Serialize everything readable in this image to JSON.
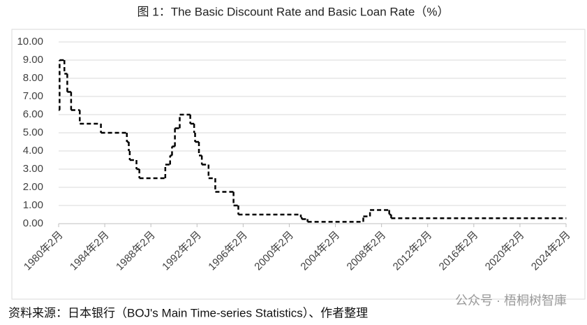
{
  "chart_data": {
    "type": "line",
    "step": true,
    "title": "图 1：The Basic Discount Rate and Basic Loan Rate（%）",
    "source": "资料来源：日本银行（BOJ's Main Time-series Statistics）、作者整理",
    "watermark": "公众号 · 梧桐树智庫",
    "color": "#000000",
    "dashed": true,
    "grid": true,
    "x": [
      "1980-02",
      "1980-03",
      "1980-08",
      "1980-11",
      "1981-03",
      "1981-12",
      "1983-10",
      "1986-01",
      "1986-03",
      "1986-04",
      "1986-11",
      "1987-02",
      "1989-05",
      "1989-10",
      "1989-12",
      "1990-03",
      "1990-08",
      "1991-07",
      "1991-11",
      "1991-12",
      "1992-04",
      "1992-07",
      "1993-02",
      "1993-09",
      "1995-04",
      "1995-09",
      "2001-02",
      "2001-03",
      "2001-09",
      "2006-07",
      "2007-02",
      "2008-10",
      "2008-12",
      "2024-02"
    ],
    "values": [
      6.25,
      9,
      8.25,
      7.25,
      6.25,
      5.5,
      5,
      4.5,
      4,
      3.5,
      3,
      2.5,
      3.25,
      3.75,
      4.25,
      5.25,
      6,
      5.5,
      5,
      4.5,
      3.75,
      3.25,
      2.5,
      1.75,
      1,
      0.5,
      0.35,
      0.25,
      0.1,
      0.4,
      0.75,
      0.5,
      0.3,
      0.3
    ],
    "xlim": [
      "1980-02",
      "2024-02"
    ],
    "xticks": [
      {
        "value": "1980-02",
        "label": "1980年2月"
      },
      {
        "value": "1984-02",
        "label": "1984年2月"
      },
      {
        "value": "1988-02",
        "label": "1988年2月"
      },
      {
        "value": "1992-02",
        "label": "1992年2月"
      },
      {
        "value": "1996-02",
        "label": "1996年2月"
      },
      {
        "value": "2000-02",
        "label": "2000年2月"
      },
      {
        "value": "2004-02",
        "label": "2004年2月"
      },
      {
        "value": "2008-02",
        "label": "2008年2月"
      },
      {
        "value": "2012-02",
        "label": "2012年2月"
      },
      {
        "value": "2016-02",
        "label": "2016年2月"
      },
      {
        "value": "2020-02",
        "label": "2020年2月"
      },
      {
        "value": "2024-02",
        "label": "2024年2月"
      }
    ],
    "ylim": [
      0,
      10
    ],
    "yticks": [
      {
        "value": 0,
        "label": "0.00"
      },
      {
        "value": 1,
        "label": "1.00"
      },
      {
        "value": 2,
        "label": "2.00"
      },
      {
        "value": 3,
        "label": "3.00"
      },
      {
        "value": 4,
        "label": "4.00"
      },
      {
        "value": 5,
        "label": "5.00"
      },
      {
        "value": 6,
        "label": "6.00"
      },
      {
        "value": 7,
        "label": "7.00"
      },
      {
        "value": 8,
        "label": "8.00"
      },
      {
        "value": 9,
        "label": "9.00"
      },
      {
        "value": 10,
        "label": "10.00"
      }
    ]
  }
}
